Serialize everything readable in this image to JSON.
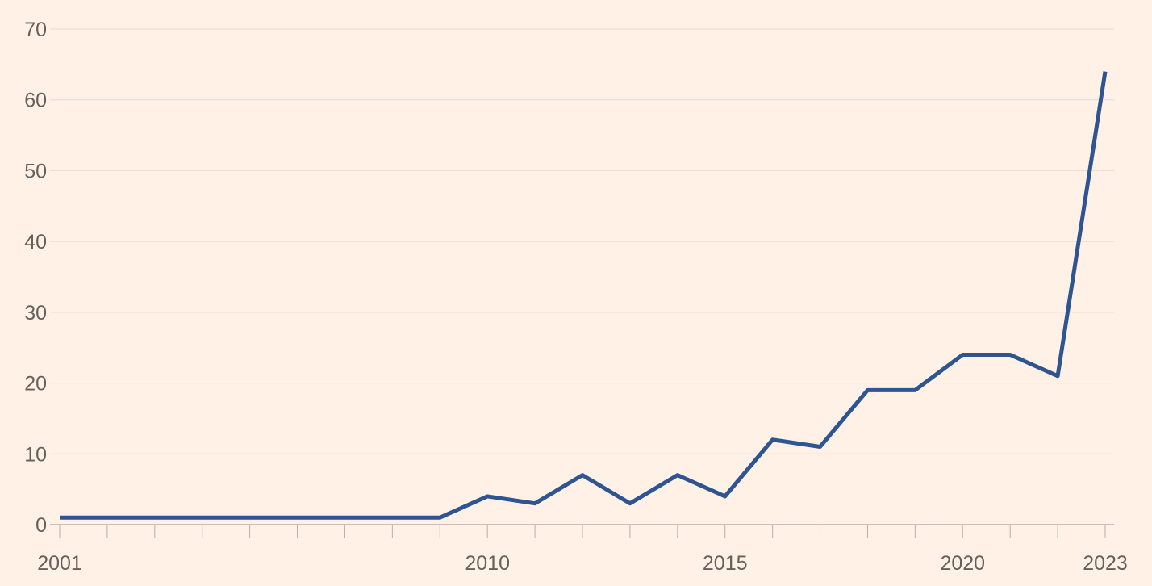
{
  "chart_data": {
    "type": "line",
    "title": "",
    "xlabel": "",
    "ylabel": "",
    "x": [
      2001,
      2002,
      2003,
      2004,
      2005,
      2006,
      2007,
      2008,
      2009,
      2010,
      2011,
      2012,
      2013,
      2014,
      2015,
      2016,
      2017,
      2018,
      2019,
      2020,
      2021,
      2022,
      2023
    ],
    "series": [
      {
        "values": [
          1,
          1,
          1,
          1,
          1,
          1,
          1,
          1,
          1,
          4,
          3,
          7,
          3,
          7,
          4,
          12,
          11,
          19,
          19,
          24,
          24,
          21,
          64
        ],
        "color": "#2e5592"
      }
    ],
    "xlim": [
      2001,
      2023
    ],
    "ylim": [
      0,
      70
    ],
    "xticks": [
      {
        "value": 2001,
        "label": "2001"
      },
      {
        "value": 2010,
        "label": "2010"
      },
      {
        "value": 2015,
        "label": "2015"
      },
      {
        "value": 2020,
        "label": "2020"
      },
      {
        "value": 2023,
        "label": "2023"
      }
    ],
    "yticks": [
      {
        "value": 0,
        "label": "0"
      },
      {
        "value": 10,
        "label": "10"
      },
      {
        "value": 20,
        "label": "20"
      },
      {
        "value": 30,
        "label": "30"
      },
      {
        "value": 40,
        "label": "40"
      },
      {
        "value": 50,
        "label": "50"
      },
      {
        "value": 60,
        "label": "60"
      },
      {
        "value": 70,
        "label": "70"
      }
    ],
    "grid": true,
    "legend": "none",
    "colors": {
      "background": "#fff1e5",
      "grid": "#e6dcd3",
      "axis": "#b8b0a8",
      "text": "#66605c",
      "line": "#2e5592"
    }
  }
}
